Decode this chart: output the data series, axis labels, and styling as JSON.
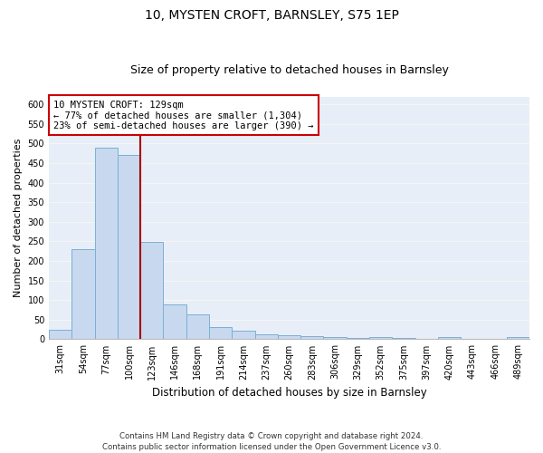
{
  "title1": "10, MYSTEN CROFT, BARNSLEY, S75 1EP",
  "title2": "Size of property relative to detached houses in Barnsley",
  "xlabel": "Distribution of detached houses by size in Barnsley",
  "ylabel": "Number of detached properties",
  "footer": "Contains HM Land Registry data © Crown copyright and database right 2024.\nContains public sector information licensed under the Open Government Licence v3.0.",
  "categories": [
    "31sqm",
    "54sqm",
    "77sqm",
    "100sqm",
    "123sqm",
    "146sqm",
    "168sqm",
    "191sqm",
    "214sqm",
    "237sqm",
    "260sqm",
    "283sqm",
    "306sqm",
    "329sqm",
    "352sqm",
    "375sqm",
    "397sqm",
    "420sqm",
    "443sqm",
    "466sqm",
    "489sqm"
  ],
  "values": [
    25,
    230,
    490,
    470,
    248,
    88,
    63,
    30,
    22,
    13,
    11,
    8,
    5,
    4,
    5,
    4,
    0,
    6,
    0,
    0,
    5
  ],
  "bar_color": "#c8d9ef",
  "bar_edge_color": "#7aafd4",
  "annotation_text": "10 MYSTEN CROFT: 129sqm\n← 77% of detached houses are smaller (1,304)\n23% of semi-detached houses are larger (390) →",
  "annotation_box_color": "#ffffff",
  "annotation_border_color": "#cc0000",
  "ylim": [
    0,
    620
  ],
  "yticks": [
    0,
    50,
    100,
    150,
    200,
    250,
    300,
    350,
    400,
    450,
    500,
    550,
    600
  ],
  "plot_bg_color": "#e8eef8",
  "grid_color": "#f5f5f5",
  "vline_color": "#aa0000",
  "vline_x": 3.5,
  "title1_fontsize": 10,
  "title2_fontsize": 9,
  "xlabel_fontsize": 8.5,
  "ylabel_fontsize": 8,
  "tick_fontsize": 7,
  "annotation_fontsize": 7.5
}
